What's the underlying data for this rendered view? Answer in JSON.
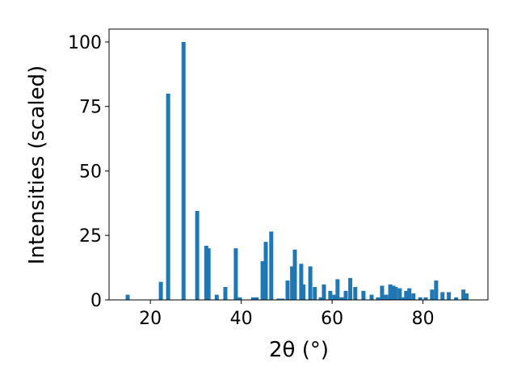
{
  "chart_data": {
    "type": "bar",
    "color": "#1f77b4",
    "xlabel": "2θ (°)",
    "ylabel": "Intensities (scaled)",
    "x": [
      15.0,
      22.3,
      23.9,
      27.3,
      30.3,
      32.3,
      32.8,
      34.6,
      36.5,
      38.8,
      39.7,
      42.6,
      43.4,
      44.7,
      45.4,
      46.6,
      48.2,
      49.1,
      50.2,
      51.2,
      51.8,
      53.2,
      53.7,
      55.2,
      56.2,
      57.5,
      58.2,
      59.6,
      60.5,
      61.2,
      62.1,
      63.0,
      64.0,
      65.1,
      66.9,
      68.7,
      70.1,
      71.0,
      71.9,
      72.8,
      73.5,
      74.0,
      74.9,
      75.8,
      76.3,
      77.0,
      77.9,
      79.4,
      80.6,
      82.0,
      82.9,
      84.3,
      85.7,
      87.3,
      88.9,
      89.6
    ],
    "values": [
      2,
      7,
      80,
      100,
      34.5,
      21,
      20,
      2,
      5,
      20,
      1,
      1,
      1,
      15,
      22.5,
      26.5,
      0.5,
      0.5,
      7.5,
      13,
      19.5,
      14,
      6,
      13,
      5,
      1,
      6,
      3.5,
      2,
      8,
      1,
      3.5,
      8.5,
      5,
      3.5,
      2,
      1,
      5.5,
      2,
      6,
      5.5,
      5,
      4.5,
      1,
      3.5,
      4.5,
      2.5,
      1,
      1,
      4,
      7.5,
      3,
      3,
      1,
      4,
      2.5
    ],
    "xlim": [
      10.9,
      94.3
    ],
    "ylim": [
      0,
      105
    ],
    "xticks": [
      20,
      40,
      60,
      80
    ],
    "yticks": [
      0,
      25,
      50,
      75,
      100
    ]
  }
}
